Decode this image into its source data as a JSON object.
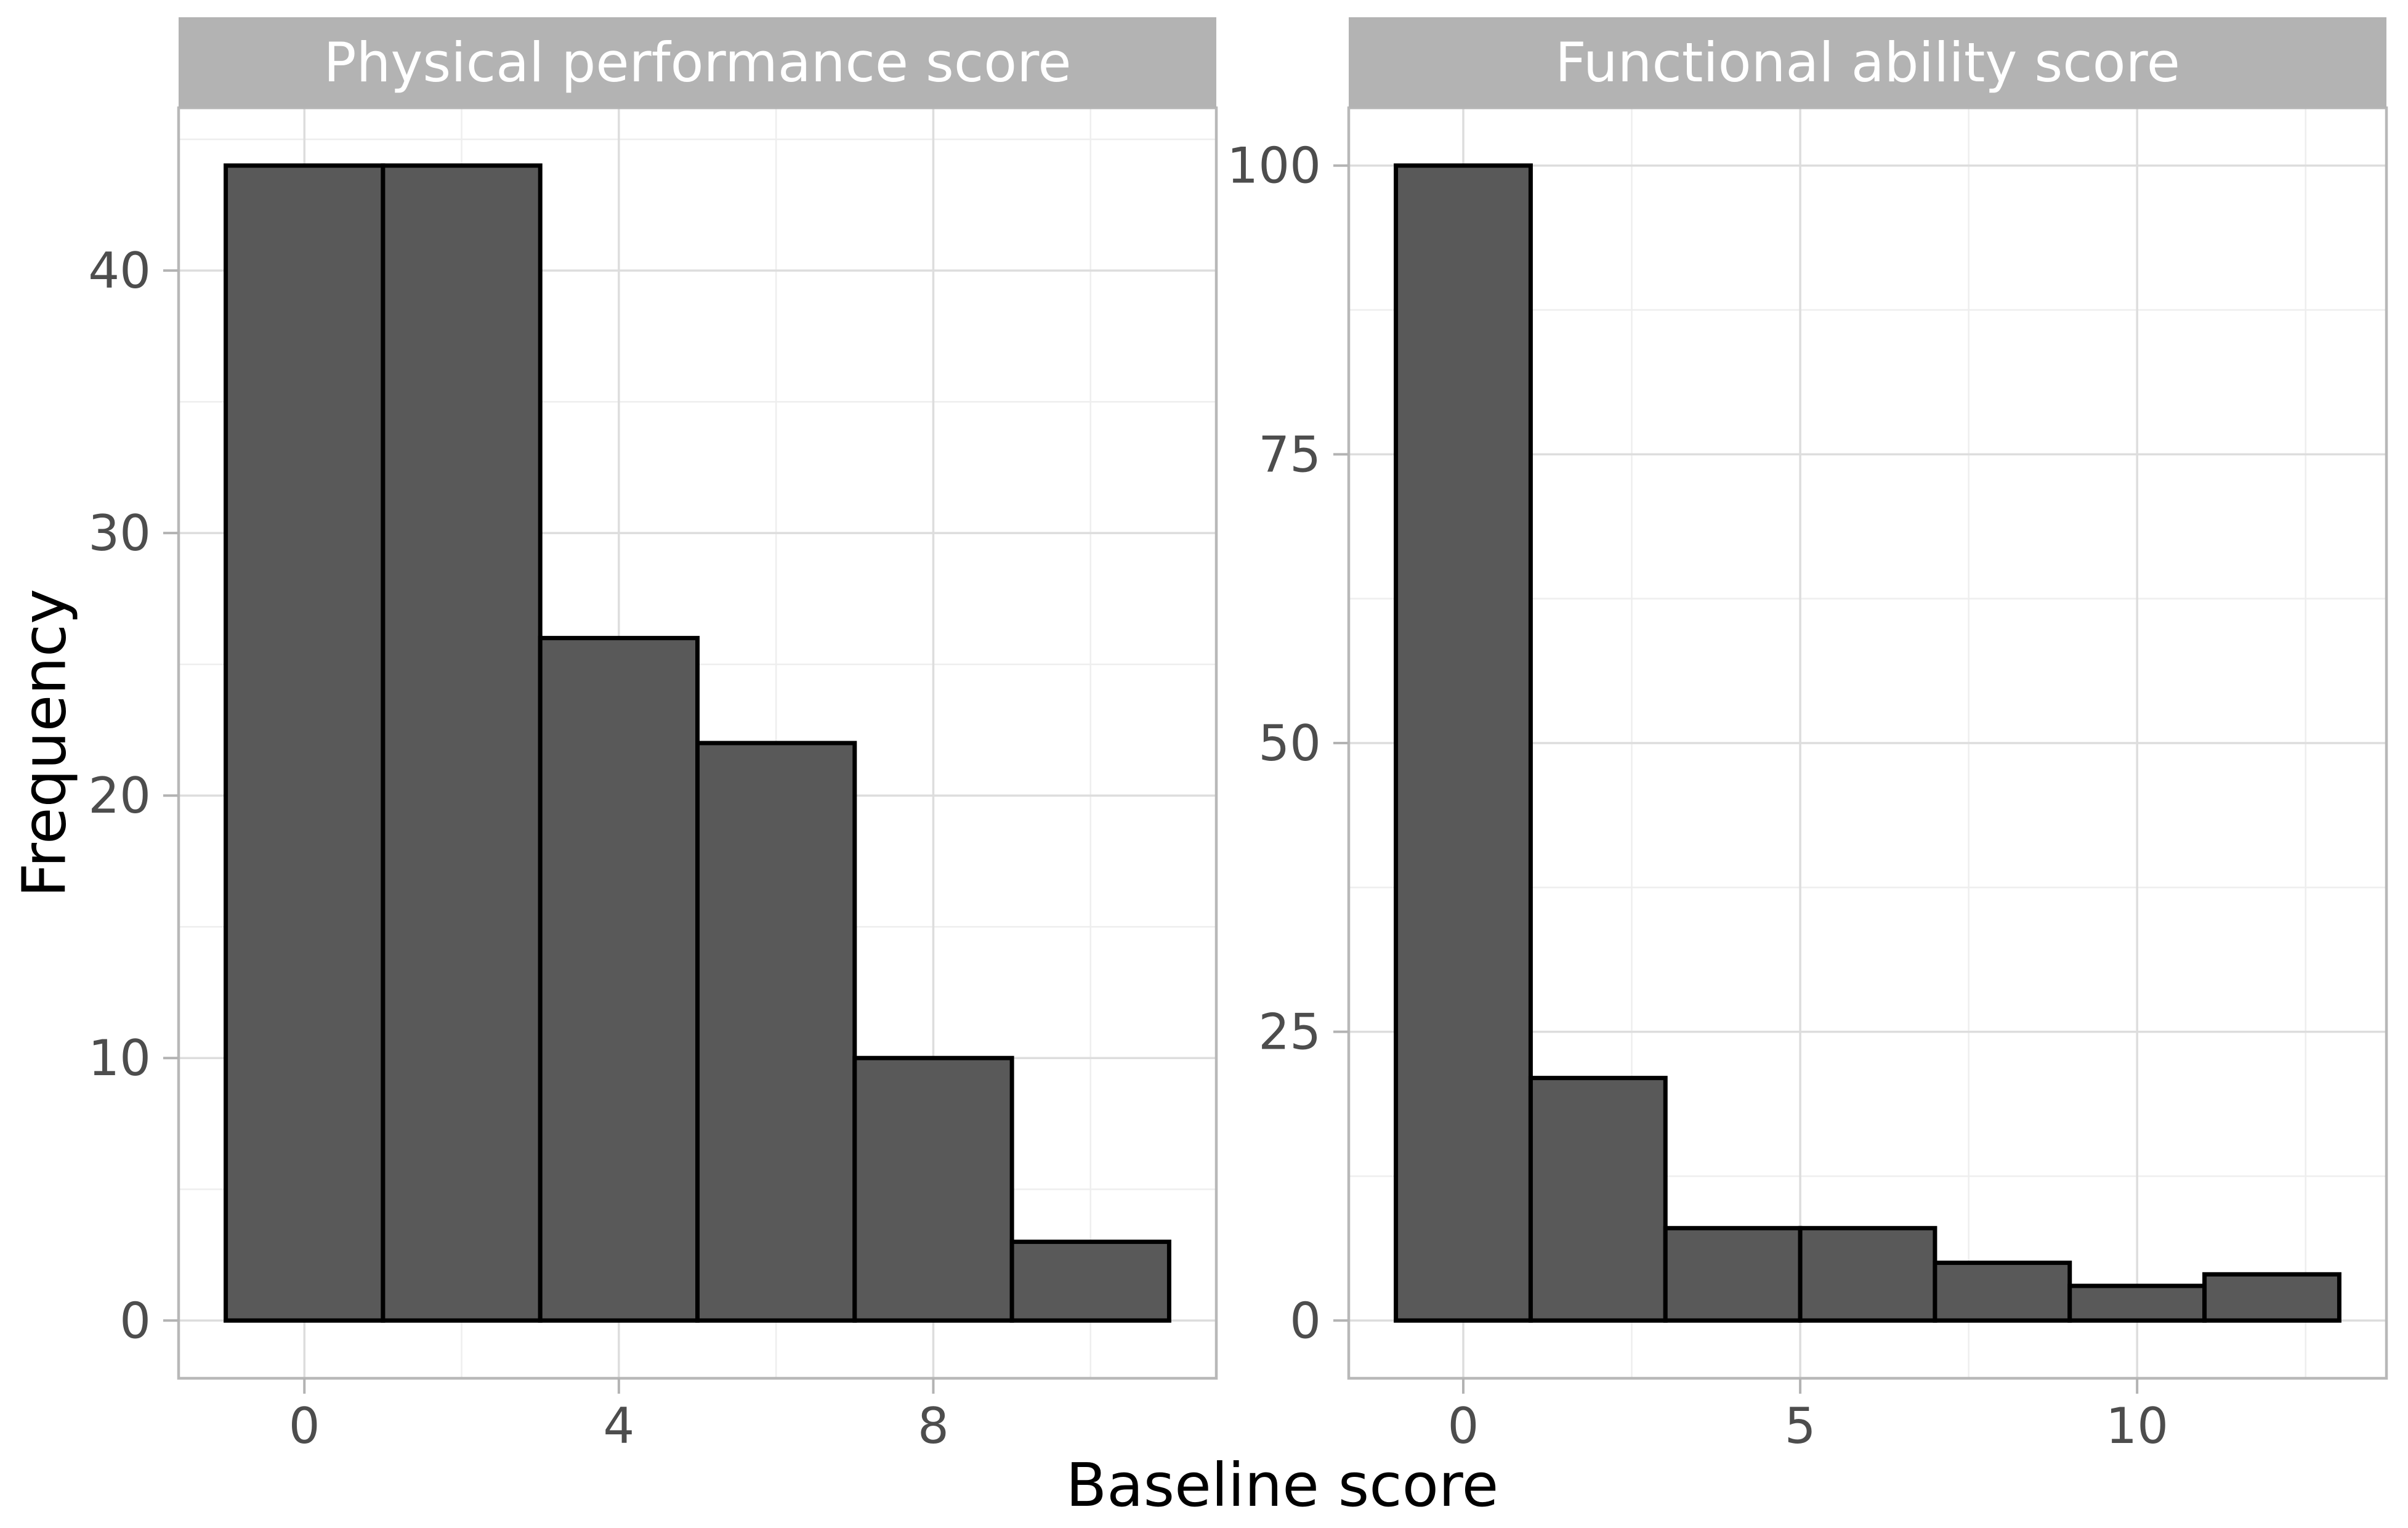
{
  "chart_data": [
    {
      "type": "bar",
      "subtype": "histogram",
      "panel_title": "Physical performance score",
      "xlabel": "Baseline score",
      "ylabel": "Frequency",
      "bin_start": -1,
      "bin_width": 2,
      "bin_edges": [
        -1,
        1,
        3,
        5,
        7,
        9,
        11
      ],
      "values": [
        44,
        44,
        26,
        22,
        10,
        3
      ],
      "x_major_ticks": [
        0,
        4,
        8
      ],
      "x_minor_gridlines": [
        2,
        6,
        10
      ],
      "y_major_ticks": [
        0,
        10,
        20,
        30,
        40
      ],
      "y_minor_gridlines": [
        5,
        15,
        25,
        35,
        45
      ],
      "xlim": [
        -1.6,
        11.6
      ],
      "ylim": [
        -2.2,
        46.2
      ],
      "grid": true,
      "legend": false
    },
    {
      "type": "bar",
      "subtype": "histogram",
      "panel_title": "Functional ability score",
      "xlabel": "Baseline score",
      "ylabel": "Frequency",
      "bin_start": -1,
      "bin_width": 2,
      "bin_edges": [
        -1,
        1,
        3,
        5,
        7,
        9,
        11,
        13
      ],
      "values": [
        100,
        21,
        8,
        8,
        5,
        3,
        4
      ],
      "x_major_ticks": [
        0,
        5,
        10
      ],
      "x_minor_gridlines": [
        2.5,
        7.5,
        12.5
      ],
      "y_major_ticks": [
        0,
        25,
        50,
        75,
        100
      ],
      "y_minor_gridlines": [
        12.5,
        37.5,
        62.5,
        87.5
      ],
      "xlim": [
        -1.7,
        13.7
      ],
      "ylim": [
        -5,
        105
      ],
      "grid": true,
      "legend": false
    }
  ],
  "colors": {
    "bar_fill": "#595959",
    "bar_stroke": "#000000",
    "strip_bg": "#b3b3b3",
    "strip_text": "#ffffff",
    "grid_major": "#dddddd",
    "grid_minor": "#eeeeee",
    "panel_border": "#b8b8b8",
    "tick_mark": "#b3b3b3",
    "tick_label": "#4d4d4d",
    "axis_title": "#000000",
    "background": "#ffffff"
  }
}
